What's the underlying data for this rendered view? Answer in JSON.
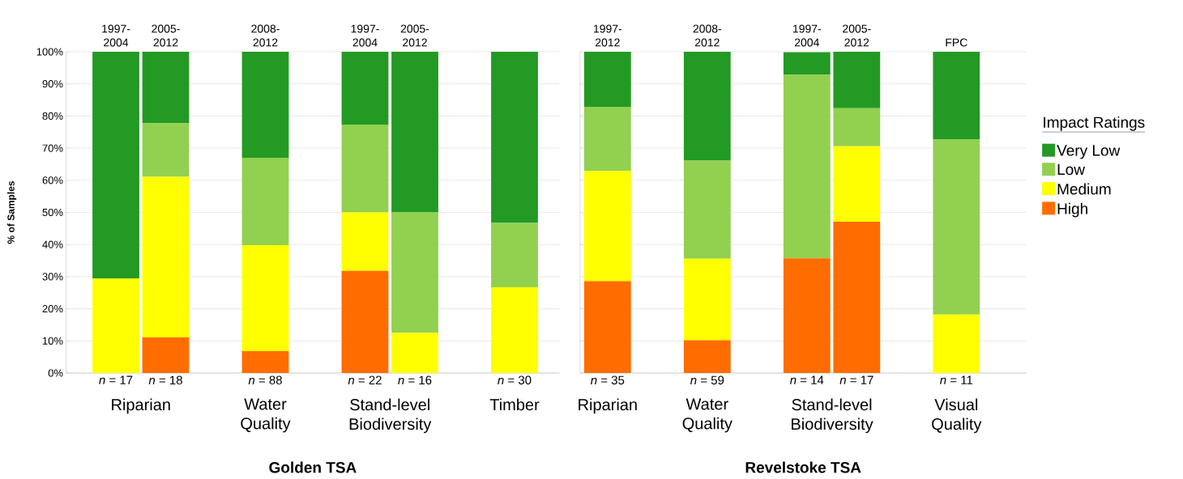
{
  "chart_data": [
    {
      "type": "bar",
      "stacked": true,
      "grid": "y",
      "legend": false,
      "ylabel": "% of Samples",
      "xlabel": "Golden TSA",
      "categories": [
        "*n* = 17",
        "*n* = 18",
        null,
        "*n* = 88",
        null,
        "*n* = 22",
        "*n* = 16",
        null,
        "*n* = 30"
      ],
      "series": [
        {
          "color": "#ff6d00",
          "values": [
            0,
            11.1,
            null,
            6.8,
            null,
            31.8,
            0,
            null,
            0
          ]
        },
        {
          "color": "#ffff00",
          "values": [
            29.4,
            50,
            null,
            33.0,
            null,
            18.2,
            12.5,
            null,
            26.7
          ]
        },
        {
          "color": "#92d050",
          "values": [
            0,
            16.7,
            null,
            27.2,
            null,
            27.3,
            37.5,
            null,
            20
          ]
        },
        {
          "color": "#239a23",
          "values": [
            70.6,
            22.2,
            null,
            33.0,
            null,
            22.7,
            50,
            null,
            53.3
          ]
        }
      ],
      "ylim": [
        0,
        100
      ],
      "yticks": [
        {
          "value": 0,
          "label": "0%"
        },
        {
          "value": 10,
          "label": "10%"
        },
        {
          "value": 20,
          "label": "20%"
        },
        {
          "value": 30,
          "label": "30%"
        },
        {
          "value": 40,
          "label": "40%"
        },
        {
          "value": 50,
          "label": "50%"
        },
        {
          "value": 60,
          "label": "60%"
        },
        {
          "value": 70,
          "label": "70%"
        },
        {
          "value": 80,
          "label": "80%"
        },
        {
          "value": 90,
          "label": "90%"
        },
        {
          "value": 100,
          "label": "100%"
        }
      ],
      "annotations": [
        "Riparian",
        "Water Quality",
        "Stand-level Biodiversity",
        "Timber",
        "1997-2004",
        "2005-2012",
        "2008-2012",
        "1997-2004",
        "2005-2012"
      ]
    },
    {
      "type": "bar",
      "stacked": true,
      "grid": "y",
      "legend": "right",
      "legend_title": "Impact Ratings",
      "xlabel": "Revelstoke TSA",
      "tick_labels": "x",
      "categories": [
        "*n* = 35",
        null,
        "*n* = 59",
        null,
        "*n* = 14",
        "*n* = 17",
        null,
        "*n* = 11"
      ],
      "yticks": [
        0,
        10,
        20,
        30,
        40,
        50,
        60,
        70,
        80,
        90,
        100
      ],
      "series": [
        {
          "name": "High",
          "color": "#ff6d00",
          "values": [
            28.6,
            null,
            10.2,
            null,
            35.7,
            47.1,
            null,
            0
          ]
        },
        {
          "name": "Medium",
          "color": "#ffff00",
          "values": [
            34.3,
            null,
            25.4,
            null,
            0,
            23.5,
            null,
            18.2
          ]
        },
        {
          "name": "Low",
          "color": "#92d050",
          "values": [
            20,
            null,
            30.5,
            null,
            57.1,
            11.8,
            null,
            54.5
          ]
        },
        {
          "name": "Very Low",
          "color": "#239a23",
          "values": [
            17.1,
            null,
            33.9,
            null,
            7.1,
            17.6,
            null,
            27.3
          ]
        }
      ],
      "ylim": [
        0,
        100
      ],
      "annotations": [
        "Riparian",
        "Water Quality",
        "Stand-level Biodiversity",
        "Visual Quality",
        "1997-2012",
        "2008-2012",
        "1997-2004",
        "2005-2012",
        "FPC"
      ]
    }
  ]
}
